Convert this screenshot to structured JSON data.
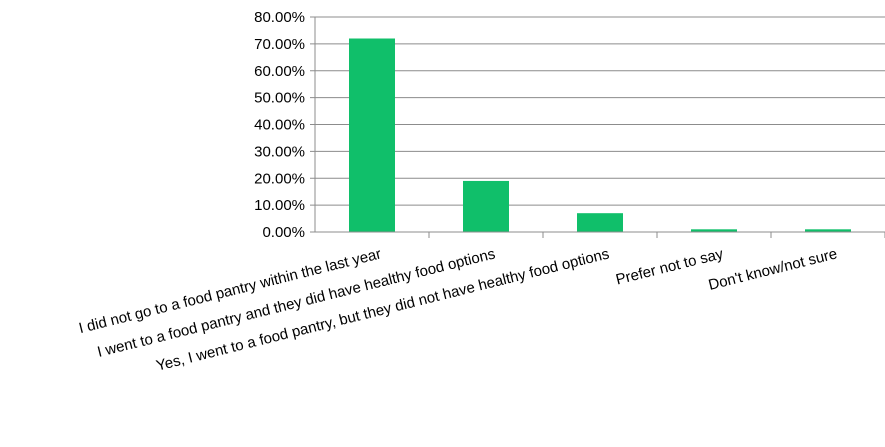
{
  "chart_data": {
    "type": "bar",
    "title": "",
    "xlabel": "",
    "ylabel": "",
    "categories": [
      "I did not go to a food pantry within the last year",
      "I went to a food pantry and they did have healthy food options",
      "Yes, I went to a food pantry, but they did not have healthy food options",
      "Prefer not to say",
      "Don't know/not sure"
    ],
    "values": [
      72,
      19,
      7,
      1,
      1
    ],
    "ylim": [
      0,
      80
    ],
    "y_ticks": [
      "0.00%",
      "10.00%",
      "20.00%",
      "30.00%",
      "40.00%",
      "50.00%",
      "60.00%",
      "70.00%",
      "80.00%"
    ],
    "grid": true,
    "legend": "none",
    "bar_color": "#10BF6A"
  }
}
